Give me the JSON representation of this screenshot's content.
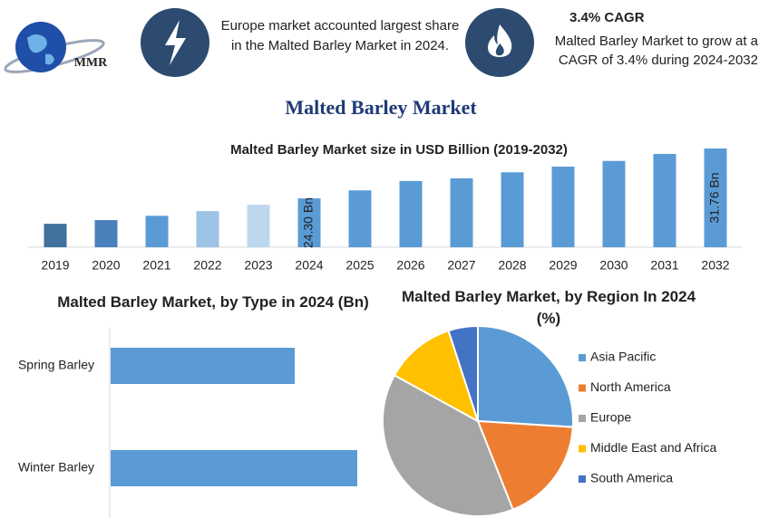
{
  "header": {
    "logo": "MMR",
    "fact_1": "Europe market accounted largest share in the Malted Barley Market in 2024.",
    "fact_2_title": "3.4% CAGR",
    "fact_2": "Malted Barley Market to grow at a CAGR of 3.4% during 2024-2032"
  },
  "title": "Malted Barley Market",
  "chart_data": [
    {
      "type": "bar",
      "title": "Malted Barley Market size in USD Billion (2019-2032)",
      "categories": [
        "2019",
        "2020",
        "2021",
        "2022",
        "2023",
        "2024",
        "2025",
        "2026",
        "2027",
        "2028",
        "2029",
        "2030",
        "2031",
        "2032"
      ],
      "values": [
        20.5,
        21.05,
        21.7,
        22.4,
        23.35,
        24.3,
        25.5,
        26.9,
        27.3,
        28.2,
        29.05,
        29.9,
        30.95,
        31.76
      ],
      "value_labels": [
        null,
        null,
        null,
        null,
        null,
        "24.30 Bn",
        null,
        null,
        null,
        null,
        null,
        null,
        null,
        "31.76 Bn"
      ],
      "colors": [
        "#41719c",
        "#4a80bb",
        "#5b9bd5",
        "#9dc3e6",
        "#bdd7ee",
        "#5b9bd5",
        "#5b9bd5",
        "#5b9bd5",
        "#5b9bd5",
        "#5b9bd5",
        "#5b9bd5",
        "#5b9bd5",
        "#5b9bd5",
        "#5b9bd5"
      ],
      "ylim": [
        17,
        32
      ]
    },
    {
      "type": "bar",
      "horizontal": true,
      "title": "Malted Barley Market, by Type in 2024 (Bn)",
      "categories": [
        "Spring Barley",
        "Winter Barley"
      ],
      "values": [
        2.03,
        2.72
      ],
      "color": "#5b9bd5",
      "xlim": [
        0,
        3
      ]
    },
    {
      "type": "pie",
      "title": "Malted Barley Market, by Region In 2024 (%)",
      "series": [
        {
          "name": "Asia Pacific",
          "color": "#5b9bd5",
          "value": 26
        },
        {
          "name": "North America",
          "color": "#ed7d31",
          "value": 18
        },
        {
          "name": "Europe",
          "color": "#a5a5a5",
          "value": 39
        },
        {
          "name": "Middle East and Africa",
          "color": "#ffc000",
          "value": 12
        },
        {
          "name": "South America",
          "color": "#4472c4",
          "value": 5
        }
      ],
      "legend": "right"
    }
  ]
}
